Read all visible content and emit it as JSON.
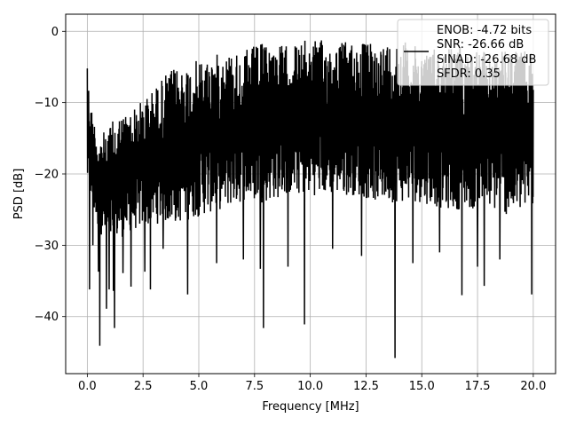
{
  "chart_data": {
    "type": "line",
    "title": "",
    "xlabel": "Frequency [MHz]",
    "ylabel": "PSD [dB]",
    "xlim": [
      -0.97,
      21.0
    ],
    "ylim": [
      -48.0,
      2.4
    ],
    "xticks": [
      0.0,
      2.5,
      5.0,
      7.5,
      10.0,
      12.5,
      15.0,
      17.5,
      20.0
    ],
    "xtick_labels": [
      "0.0",
      "2.5",
      "5.0",
      "7.5",
      "10.0",
      "12.5",
      "15.0",
      "17.5",
      "20.0"
    ],
    "yticks": [
      0,
      -10,
      -20,
      -30,
      -40
    ],
    "ytick_labels": [
      "0",
      "−10",
      "−20",
      "−30",
      "−40"
    ],
    "grid": true,
    "legend_position": "top-right",
    "legend_lines": [
      "ENOB: -4.72 bits",
      "SNR: -26.66 dB",
      "SINAD: -26.68 dB",
      "SFDR: 0.35"
    ],
    "series_color": "#000000",
    "series": [
      {
        "name": "",
        "x_start": 0.0,
        "x_end": 20.0,
        "upper_envelope": [
          [
            0.0,
            -5.2
          ],
          [
            0.15,
            -10
          ],
          [
            0.5,
            -15
          ],
          [
            1.0,
            -13
          ],
          [
            1.5,
            -11.5
          ],
          [
            2.0,
            -11
          ],
          [
            2.5,
            -9.5
          ],
          [
            3.0,
            -8
          ],
          [
            3.5,
            -6
          ],
          [
            4.0,
            -5
          ],
          [
            5.0,
            -4
          ],
          [
            6.0,
            -3
          ],
          [
            7.0,
            -2.5
          ],
          [
            8.0,
            -1.5
          ],
          [
            9.0,
            -2
          ],
          [
            10.0,
            -1
          ],
          [
            11.0,
            -1.5
          ],
          [
            12.0,
            -1.2
          ],
          [
            13.0,
            -1.8
          ],
          [
            14.0,
            -1
          ],
          [
            15.0,
            -2.5
          ],
          [
            16.0,
            -1.8
          ],
          [
            17.0,
            -2
          ],
          [
            18.0,
            -3
          ],
          [
            19.0,
            -2.5
          ],
          [
            20.0,
            -3
          ]
        ],
        "lower_envelope": [
          [
            0.0,
            -22
          ],
          [
            0.5,
            -28
          ],
          [
            1.0,
            -30
          ],
          [
            2.0,
            -28
          ],
          [
            3.0,
            -27
          ],
          [
            4.0,
            -27
          ],
          [
            5.0,
            -26
          ],
          [
            6.0,
            -25
          ],
          [
            7.0,
            -24
          ],
          [
            8.0,
            -24
          ],
          [
            9.0,
            -23
          ],
          [
            10.0,
            -23
          ],
          [
            11.0,
            -23
          ],
          [
            12.0,
            -23
          ],
          [
            13.0,
            -24
          ],
          [
            14.0,
            -24
          ],
          [
            15.0,
            -24
          ],
          [
            16.0,
            -25
          ],
          [
            17.0,
            -25
          ],
          [
            18.0,
            -25
          ],
          [
            19.0,
            -26
          ],
          [
            20.0,
            -25
          ]
        ],
        "dips": [
          [
            0.1,
            -36.2
          ],
          [
            0.25,
            -30
          ],
          [
            0.5,
            -33.7
          ],
          [
            0.56,
            -44.1
          ],
          [
            0.86,
            -38.9
          ],
          [
            0.98,
            -36.2
          ],
          [
            1.17,
            -36.4
          ],
          [
            1.22,
            -41.6
          ],
          [
            1.6,
            -33.9
          ],
          [
            1.96,
            -35.8
          ],
          [
            2.58,
            -33.7
          ],
          [
            2.83,
            -36.2
          ],
          [
            3.4,
            -30.5
          ],
          [
            4.5,
            -36.9
          ],
          [
            5.8,
            -32.5
          ],
          [
            7.0,
            -32
          ],
          [
            7.76,
            -33.3
          ],
          [
            7.9,
            -41.6
          ],
          [
            9.0,
            -33
          ],
          [
            9.74,
            -41.1
          ],
          [
            11.0,
            -30.5
          ],
          [
            12.3,
            -31.5
          ],
          [
            13.8,
            -45.8
          ],
          [
            14.6,
            -32.5
          ],
          [
            15.8,
            -31
          ],
          [
            16.8,
            -37.0
          ],
          [
            17.5,
            -33
          ],
          [
            17.8,
            -35.7
          ],
          [
            18.5,
            -32
          ],
          [
            19.93,
            -36.9
          ]
        ]
      }
    ]
  }
}
